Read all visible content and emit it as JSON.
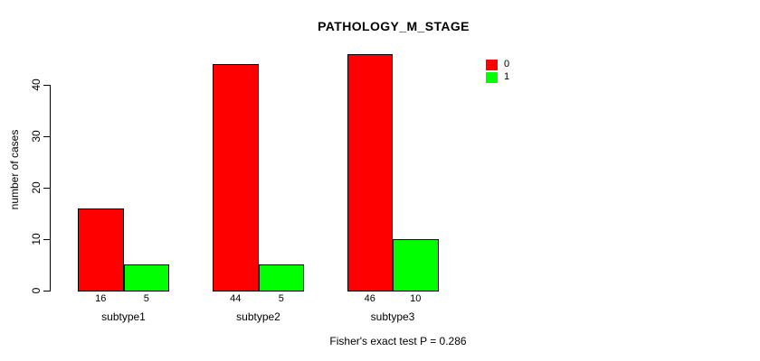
{
  "chart_data": {
    "type": "bar",
    "title": "PATHOLOGY_M_STAGE",
    "ylabel": "number of cases",
    "xlabel": "",
    "categories": [
      "subtype1",
      "subtype2",
      "subtype3"
    ],
    "series": [
      {
        "name": "0",
        "color": "#FF0000",
        "values": [
          16,
          44,
          46
        ]
      },
      {
        "name": "1",
        "color": "#00FF00",
        "values": [
          5,
          5,
          10
        ]
      }
    ],
    "ylim": [
      0,
      40
    ],
    "yticks": [
      0,
      10,
      20,
      30,
      40
    ],
    "grid": false,
    "legend_position": "top-right",
    "value_labels_shown": true,
    "annotation": "Fisher's exact test P = 0.286"
  },
  "colors": {
    "bar_border": "#000000",
    "text": "#000000",
    "background": "#FFFFFF"
  }
}
